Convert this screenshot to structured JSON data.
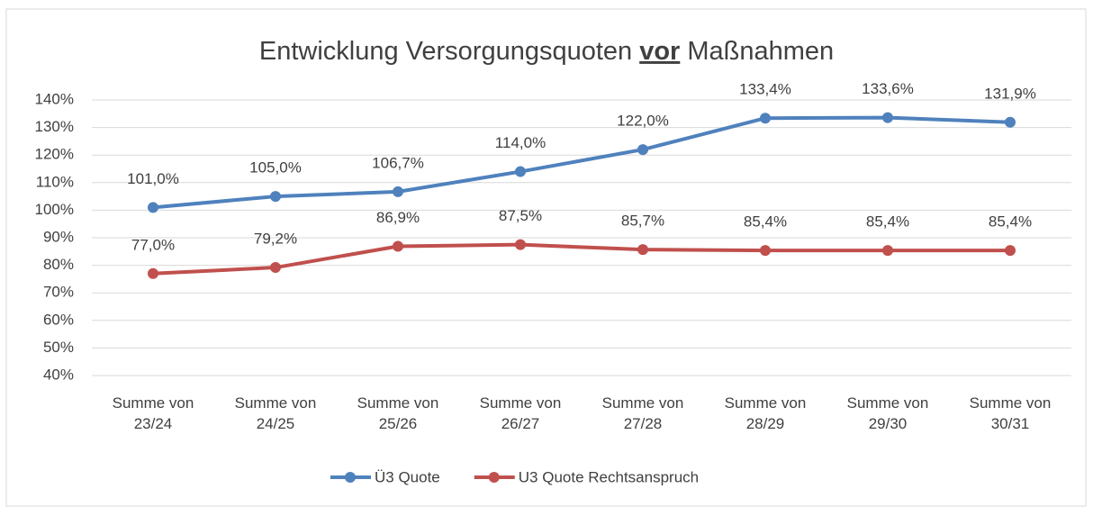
{
  "chart_data": {
    "type": "line",
    "title_parts": [
      "Entwicklung Versorgungsquoten",
      "vor",
      "Maßnahmen"
    ],
    "categories": [
      "Summe von 23/24",
      "Summe von 24/25",
      "Summe von 25/26",
      "Summe von 26/27",
      "Summe von 27/28",
      "Summe von 28/29",
      "Summe von 29/30",
      "Summe von 30/31"
    ],
    "series": [
      {
        "name": "Ü3 Quote",
        "color": "#4f81bd",
        "values": [
          101.0,
          105.0,
          106.7,
          114.0,
          122.0,
          133.4,
          133.6,
          131.9
        ],
        "value_labels": [
          "101,0%",
          "105,0%",
          "106,7%",
          "114,0%",
          "122,0%",
          "133,4%",
          "133,6%",
          "131,9%"
        ]
      },
      {
        "name": "U3 Quote Rechtsanspruch",
        "color": "#c0504d",
        "values": [
          77.0,
          79.2,
          86.9,
          87.5,
          85.7,
          85.4,
          85.4,
          85.4
        ],
        "value_labels": [
          "77,0%",
          "79,2%",
          "86,9%",
          "87,5%",
          "85,7%",
          "85,4%",
          "85,4%",
          "85,4%"
        ]
      }
    ],
    "ylim": [
      40,
      140
    ],
    "yticks": [
      {
        "value": 40,
        "label": "40%"
      },
      {
        "value": 50,
        "label": "50%"
      },
      {
        "value": 60,
        "label": "60%"
      },
      {
        "value": 70,
        "label": "70%"
      },
      {
        "value": 80,
        "label": "80%"
      },
      {
        "value": 90,
        "label": "90%"
      },
      {
        "value": 100,
        "label": "100%"
      },
      {
        "value": 110,
        "label": "110%"
      },
      {
        "value": 120,
        "label": "120%"
      },
      {
        "value": 130,
        "label": "130%"
      },
      {
        "value": 140,
        "label": "140%"
      }
    ],
    "grid": true,
    "legend": "bottom"
  }
}
